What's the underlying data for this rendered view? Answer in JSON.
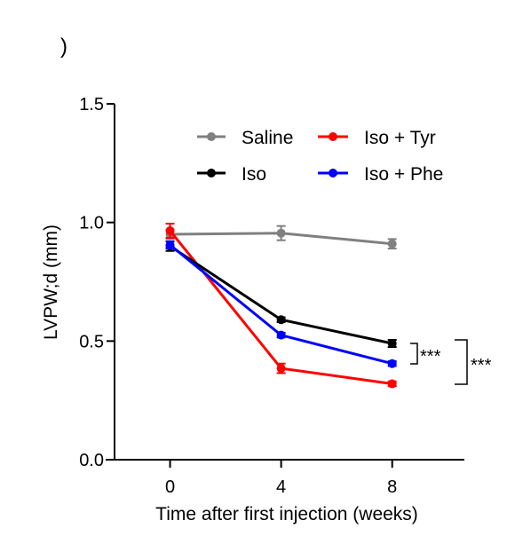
{
  "panel_mark": ")",
  "chart_data": {
    "type": "line",
    "xlabel": "Time after first injection (weeks)",
    "ylabel": "LVPW;d (mm)",
    "x": [
      0,
      4,
      8
    ],
    "x_ticks": [
      "0",
      "4",
      "8"
    ],
    "y_ticks": [
      "0.0",
      "0.5",
      "1.0",
      "1.5"
    ],
    "xlim": [
      -2,
      10.6
    ],
    "ylim": [
      0,
      1.5
    ],
    "grid": false,
    "legend_position": "top-right",
    "series": [
      {
        "name": "Saline",
        "color": "#808080",
        "values": [
          0.95,
          0.955,
          0.91
        ],
        "errors": [
          0.02,
          0.03,
          0.02
        ]
      },
      {
        "name": "Iso + Tyr",
        "color": "#ff0000",
        "values": [
          0.965,
          0.385,
          0.32
        ],
        "errors": [
          0.03,
          0.02,
          0.01
        ]
      },
      {
        "name": "Iso",
        "color": "#000000",
        "values": [
          0.9,
          0.59,
          0.49
        ],
        "errors": [
          0.02,
          0.01,
          0.015
        ]
      },
      {
        "name": "Iso + Phe",
        "color": "#0000ff",
        "values": [
          0.905,
          0.525,
          0.405
        ],
        "errors": [
          0.015,
          0.01,
          0.01
        ]
      }
    ],
    "annotations": [
      "***",
      "***"
    ]
  }
}
